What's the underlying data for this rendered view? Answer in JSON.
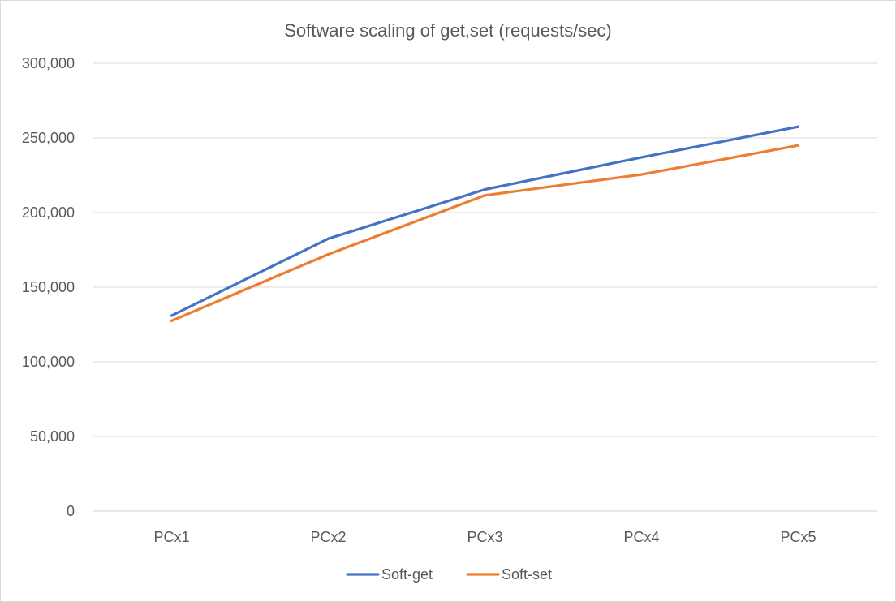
{
  "chart_data": {
    "type": "line",
    "title": "Software scaling of get,set (requests/sec)",
    "xlabel": "",
    "ylabel": "",
    "categories": [
      "PCx1",
      "PCx2",
      "PCx3",
      "PCx4",
      "PCx5"
    ],
    "ylim": [
      0,
      300000
    ],
    "yticks": [
      0,
      50000,
      100000,
      150000,
      200000,
      250000,
      300000
    ],
    "ytick_labels": [
      "0",
      "50,000",
      "100,000",
      "150,000",
      "200,000",
      "250,000",
      "300,000"
    ],
    "grid": true,
    "legend_position": "bottom",
    "series": [
      {
        "name": "Soft-get",
        "color": "#4472C4",
        "values": [
          131000,
          182500,
          215500,
          237000,
          257500
        ]
      },
      {
        "name": "Soft-set",
        "color": "#ED7D31",
        "values": [
          127500,
          172000,
          211500,
          225500,
          245000
        ]
      }
    ]
  }
}
